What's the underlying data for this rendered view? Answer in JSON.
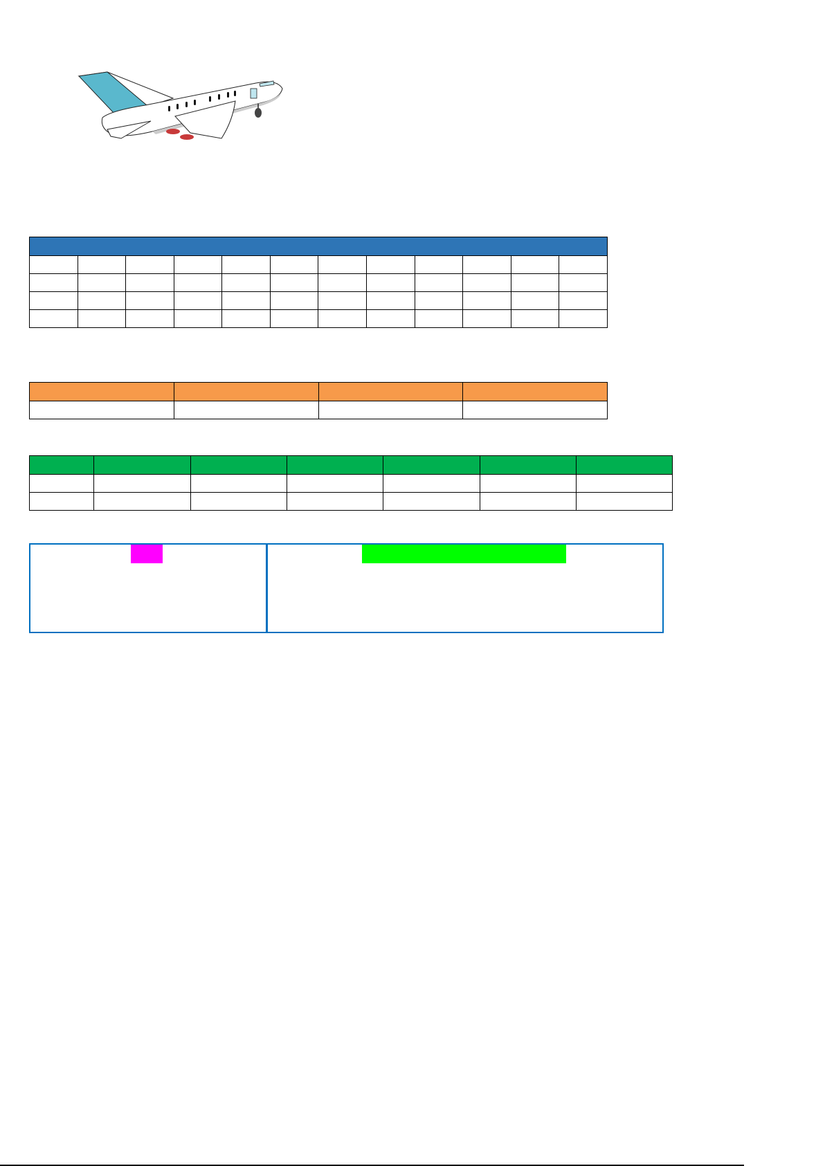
{
  "document": {
    "illustration": "airplane-taking-off",
    "colors": {
      "table1_header": "#2e75b6",
      "table2_header": "#f79a4a",
      "table3_header": "#00b050",
      "box_border": "#0070c0",
      "highlight_left": "#ff00ff",
      "highlight_right": "#00ff00"
    },
    "table1": {
      "columns": 12,
      "body_rows": 4
    },
    "table2": {
      "columns": 4,
      "body_rows": 1
    },
    "table3": {
      "columns": 7,
      "body_rows": 2
    }
  }
}
